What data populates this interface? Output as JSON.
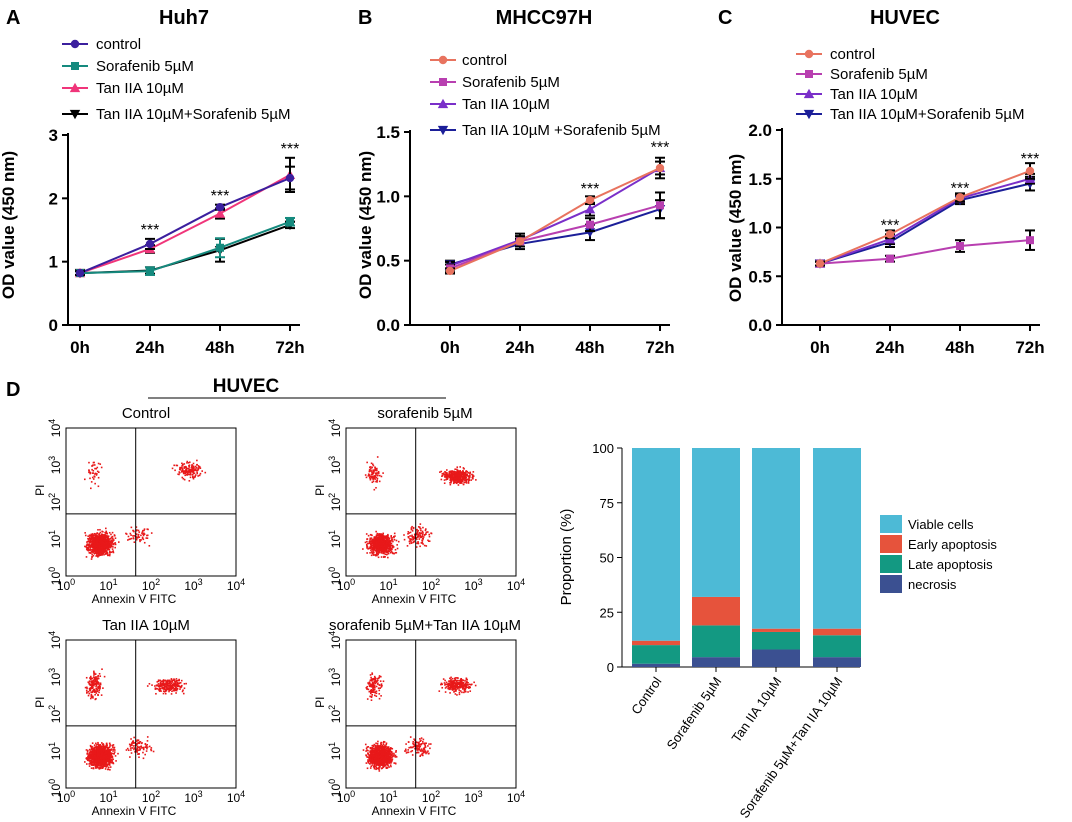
{
  "colors": {
    "control_black": "#000000",
    "purple_dark": "#3b1f9e",
    "teal": "#158a7e",
    "pink": "#f0357a",
    "salmon": "#e8735f",
    "magenta": "#b83fb0",
    "violet": "#7a2fc9",
    "navy": "#1c1f99",
    "flow_red": "#e8191a",
    "viable": "#4dbad6",
    "early": "#e6533c",
    "late": "#139982",
    "necrosis": "#3b5091"
  },
  "panel_d": {
    "letter": "D",
    "header": "HUVEC",
    "flow_plots": [
      {
        "title": "Control",
        "xaxis_label": "Annexin V FITC",
        "yaxis_label": "PI"
      },
      {
        "title": "sorafenib 5µM",
        "xaxis_label": "Annexin V FITC",
        "yaxis_label": "PI"
      },
      {
        "title": "Tan IIA 10µM",
        "xaxis_label": "Annexin V FITC",
        "yaxis_label": "PI"
      },
      {
        "title": "sorafenib 5µM+Tan IIA 10µM",
        "xaxis_label": "Annexin V FITC",
        "yaxis_label": "PI"
      }
    ],
    "flow_ticks": [
      "10",
      "10",
      "10",
      "10",
      "10"
    ],
    "flow_tick_exps": [
      "0",
      "1",
      "2",
      "3",
      "4"
    ]
  },
  "chart_data": [
    {
      "type": "line",
      "panel": "A",
      "title": "Huh7",
      "xlabel": "",
      "ylabel": "OD value (450 nm)",
      "categories": [
        "0h",
        "24h",
        "48h",
        "72h"
      ],
      "ylim": [
        0,
        3
      ],
      "yticks": [
        "0",
        "1",
        "2",
        "3"
      ],
      "legend_position": "top-left",
      "series": [
        {
          "name": "control",
          "values": [
            0.82,
            1.28,
            1.86,
            2.32
          ],
          "errors": [
            0.03,
            0.08,
            0.04,
            0.18
          ],
          "marker": "circle",
          "color_key": "purple_dark"
        },
        {
          "name": "Sorafenib 5µM",
          "values": [
            0.82,
            0.85,
            1.22,
            1.63
          ],
          "errors": [
            0.03,
            0.06,
            0.15,
            0.06
          ],
          "marker": "square",
          "color_key": "teal"
        },
        {
          "name": "Tan IIA 10µM",
          "values": [
            0.82,
            1.2,
            1.76,
            2.37
          ],
          "errors": [
            0.03,
            0.06,
            0.08,
            0.27
          ],
          "marker": "triangle-up",
          "color_key": "pink"
        },
        {
          "name": "Tan IIA 10µM+Sorafenib 5µM",
          "values": [
            0.82,
            0.86,
            1.18,
            1.58
          ],
          "errors": [
            0.03,
            0.05,
            0.18,
            0.05
          ],
          "marker": "triangle-down",
          "color_key": "control_black"
        }
      ],
      "annotations": [
        {
          "text": "***",
          "category": "24h",
          "y": 1.42
        },
        {
          "text": "***",
          "category": "48h",
          "y": 1.96
        },
        {
          "text": "***",
          "category": "72h",
          "y": 2.7
        }
      ]
    },
    {
      "type": "line",
      "panel": "B",
      "title": "MHCC97H",
      "xlabel": "",
      "ylabel": "OD value (450 nm)",
      "categories": [
        "0h",
        "24h",
        "48h",
        "72h"
      ],
      "ylim": [
        0,
        1.5
      ],
      "yticks": [
        "0.0",
        "0.5",
        "1.0",
        "1.5"
      ],
      "legend_position": "top-left",
      "series": [
        {
          "name": "control",
          "values": [
            0.42,
            0.65,
            0.97,
            1.22
          ],
          "errors": [
            0.02,
            0.04,
            0.03,
            0.05
          ],
          "marker": "circle",
          "color_key": "salmon"
        },
        {
          "name": "Sorafenib 5µM",
          "values": [
            0.44,
            0.65,
            0.78,
            0.93
          ],
          "errors": [
            0.03,
            0.04,
            0.05,
            0.1
          ],
          "marker": "square",
          "color_key": "magenta"
        },
        {
          "name": "Tan IIA 10µM",
          "values": [
            0.46,
            0.66,
            0.9,
            1.22
          ],
          "errors": [
            0.03,
            0.05,
            0.05,
            0.08
          ],
          "marker": "triangle-up",
          "color_key": "violet"
        },
        {
          "name": "Tan IIA 10µM +Sorafenib 5µM",
          "values": [
            0.47,
            0.63,
            0.72,
            0.9
          ],
          "errors": [
            0.03,
            0.04,
            0.06,
            0.07
          ],
          "marker": "triangle-down",
          "color_key": "navy"
        }
      ],
      "annotations": [
        {
          "text": "***",
          "category": "48h",
          "y": 1.02
        },
        {
          "text": "***",
          "category": "72h",
          "y": 1.34
        }
      ]
    },
    {
      "type": "line",
      "panel": "C",
      "title": "HUVEC",
      "xlabel": "",
      "ylabel": "OD value (450 nm)",
      "categories": [
        "0h",
        "24h",
        "48h",
        "72h"
      ],
      "ylim": [
        0,
        2
      ],
      "yticks": [
        "0.0",
        "0.5",
        "1.0",
        "1.5",
        "2.0"
      ],
      "legend_position": "top-left",
      "series": [
        {
          "name": "control",
          "values": [
            0.63,
            0.93,
            1.31,
            1.58
          ],
          "errors": [
            0.02,
            0.04,
            0.04,
            0.08
          ],
          "marker": "circle",
          "color_key": "salmon"
        },
        {
          "name": "Sorafenib 5µM",
          "values": [
            0.63,
            0.68,
            0.81,
            0.87
          ],
          "errors": [
            0.02,
            0.03,
            0.06,
            0.1
          ],
          "marker": "square",
          "color_key": "magenta"
        },
        {
          "name": "Tan IIA 10µM",
          "values": [
            0.63,
            0.88,
            1.3,
            1.5
          ],
          "errors": [
            0.02,
            0.05,
            0.04,
            0.05
          ],
          "marker": "triangle-up",
          "color_key": "violet"
        },
        {
          "name": "Tan IIA 10µM+Sorafenib 5µM",
          "values": [
            0.63,
            0.85,
            1.28,
            1.45
          ],
          "errors": [
            0.02,
            0.05,
            0.04,
            0.07
          ],
          "marker": "triangle-down",
          "color_key": "navy"
        }
      ],
      "annotations": [
        {
          "text": "***",
          "category": "24h",
          "y": 0.97
        },
        {
          "text": "***",
          "category": "48h",
          "y": 1.35
        },
        {
          "text": "***",
          "category": "72h",
          "y": 1.65
        }
      ]
    },
    {
      "type": "bar",
      "stacked": true,
      "panel": "D",
      "title": "",
      "xlabel": "",
      "ylabel": "Proportion (%)",
      "categories": [
        "Control",
        "Sorafenib 5µM",
        "Tan IIA 10µM",
        "Sorafenib 5µM+Tan IIA 10µM"
      ],
      "ylim": [
        0,
        100
      ],
      "yticks": [
        "0",
        "25",
        "50",
        "75",
        "100"
      ],
      "legend_position": "right",
      "series": [
        {
          "name": "necrosis",
          "values": [
            1.5,
            4.5,
            8,
            4.5
          ],
          "color_key": "necrosis"
        },
        {
          "name": "Late apoptosis",
          "values": [
            8.5,
            14.5,
            8,
            10
          ],
          "color_key": "late"
        },
        {
          "name": "Early apoptosis",
          "values": [
            2,
            13,
            1.5,
            3
          ],
          "color_key": "early"
        },
        {
          "name": "Viable cells",
          "values": [
            88,
            68,
            82.5,
            82.5
          ],
          "color_key": "viable"
        }
      ],
      "legend_order": [
        "Viable cells",
        "Early apoptosis",
        "Late apoptosis",
        "necrosis"
      ]
    }
  ]
}
